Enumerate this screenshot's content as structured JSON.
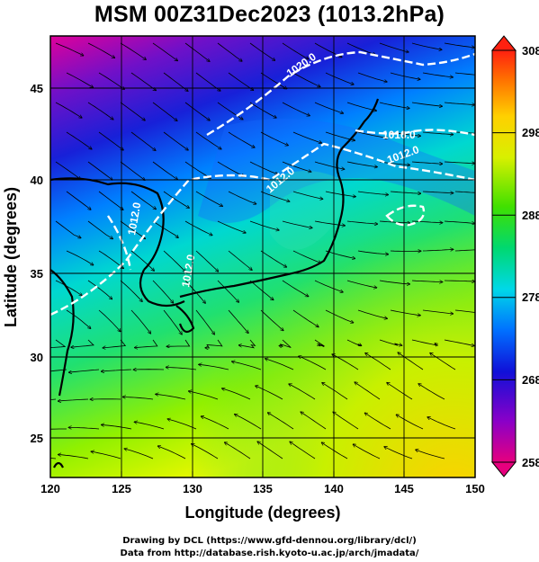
{
  "title": "MSM 00Z31Dec2023 (1013.2hPa)",
  "xlabel": "Longitude (degrees)",
  "ylabel": "Latitude  (degrees)",
  "x_ticks": [
    "120",
    "125",
    "130",
    "135",
    "140",
    "145",
    "150"
  ],
  "y_ticks": [
    "25",
    "30",
    "35",
    "40",
    "45"
  ],
  "colorbar": {
    "ticks": [
      "258",
      "268",
      "278",
      "288",
      "298",
      "308"
    ],
    "min": 258,
    "max": 308
  },
  "isobar_labels": [
    "1020.0",
    "1016.0",
    "1012.0",
    "1012.0",
    "1012.0",
    "1012.0"
  ],
  "footer": {
    "line1": "Drawing by DCL (https://www.gfd-dennou.org/library/dcl/)",
    "line2": "Data from http://database.rish.kyoto-u.ac.jp/arch/jmadata/"
  },
  "map": {
    "lon_range": [
      120,
      150
    ],
    "lat_range": [
      22.4,
      47.6
    ],
    "color_scale": [
      "#e6007e",
      "#6a00c8",
      "#0010d0",
      "#00a0ff",
      "#00e0d0",
      "#00d050",
      "#40e000",
      "#e8ff00",
      "#ffd000",
      "#ff8000",
      "#ff2000"
    ]
  }
}
